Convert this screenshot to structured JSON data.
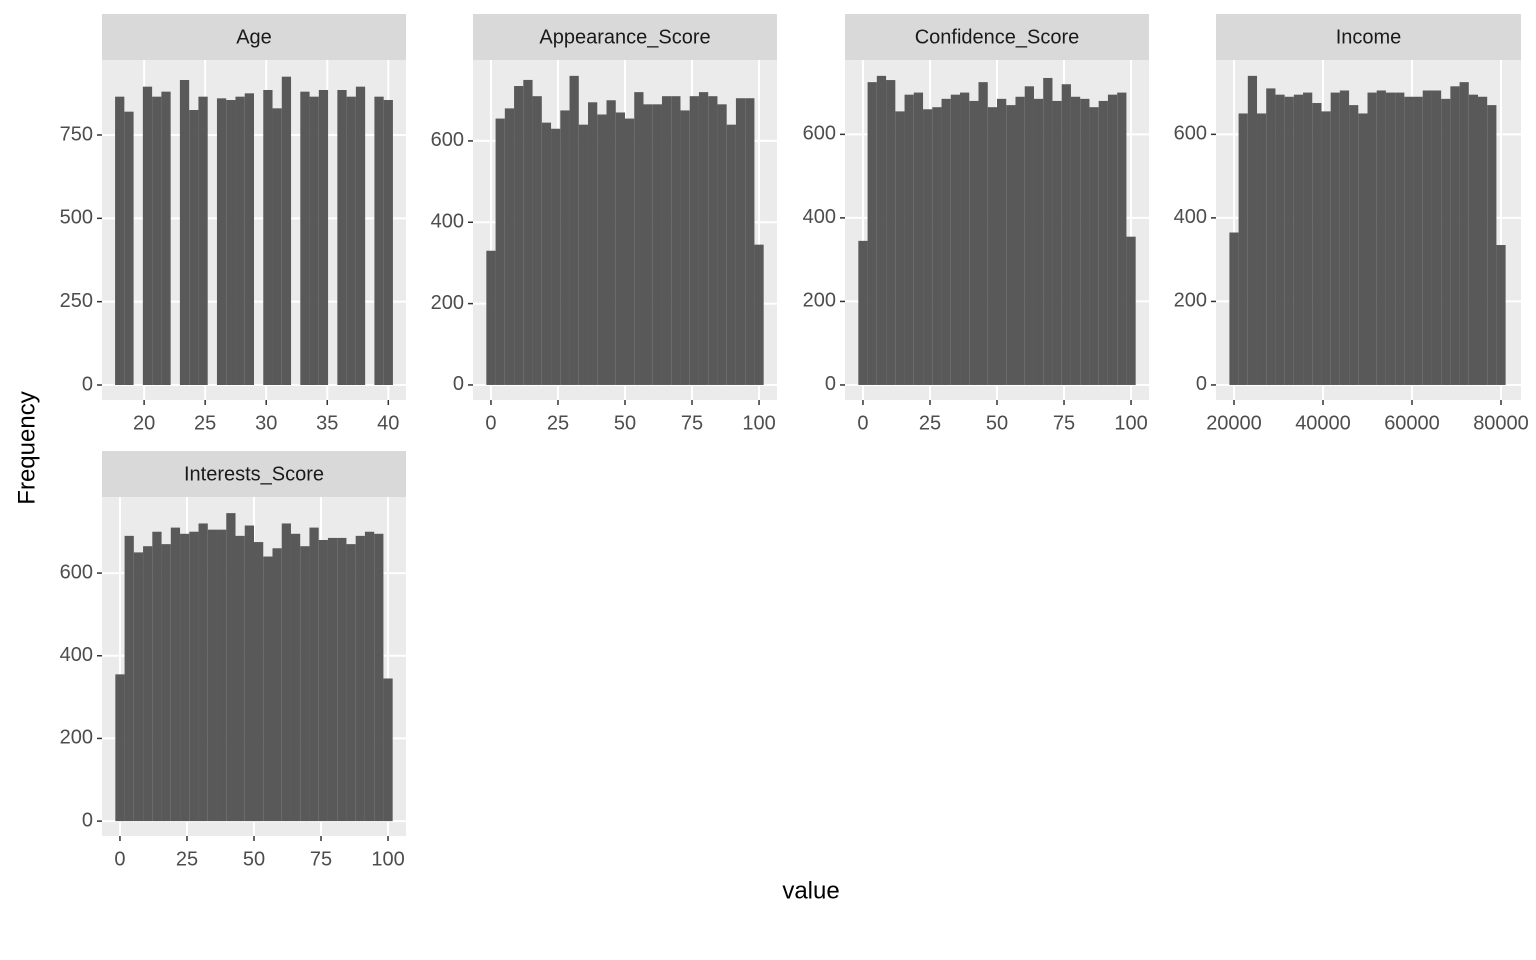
{
  "x_label": "value",
  "y_label": "Frequency",
  "chart_data": [
    {
      "type": "histogram",
      "title": "Age",
      "color": "#595959",
      "grid": true,
      "bins": [
        17.621,
        18.379,
        19.138,
        19.897,
        20.655,
        21.414,
        22.172,
        22.931,
        23.69,
        24.448,
        25.207,
        25.966,
        26.724,
        27.483,
        28.241,
        29.0,
        29.759,
        30.517,
        31.276,
        32.034,
        32.793,
        33.552,
        34.31,
        35.069,
        35.828,
        36.586,
        37.345,
        38.103,
        38.862,
        39.621,
        40.379
      ],
      "values": [
        865,
        820,
        0,
        895,
        865,
        880,
        0,
        915,
        825,
        865,
        0,
        860,
        855,
        865,
        875,
        0,
        885,
        830,
        925,
        0,
        880,
        865,
        885,
        0,
        885,
        865,
        895,
        0,
        865,
        855
      ],
      "xlim": [
        16.55,
        41.45
      ],
      "ylim": [
        -45,
        975
      ],
      "xticks": [
        20,
        25,
        30,
        35,
        40
      ],
      "yticks": [
        0,
        250,
        500,
        750
      ]
    },
    {
      "type": "histogram",
      "title": "Appearance_Score",
      "color": "#595959",
      "grid": true,
      "bins": [
        -1.724,
        1.724,
        5.172,
        8.621,
        12.069,
        15.517,
        18.966,
        22.414,
        25.862,
        29.31,
        32.759,
        36.207,
        39.655,
        43.103,
        46.552,
        50.0,
        53.448,
        56.897,
        60.345,
        63.793,
        67.241,
        70.69,
        74.138,
        77.586,
        81.034,
        84.483,
        87.931,
        91.379,
        94.828,
        98.276,
        101.724
      ],
      "values": [
        330,
        655,
        680,
        735,
        750,
        710,
        645,
        630,
        675,
        760,
        640,
        695,
        665,
        700,
        670,
        655,
        720,
        690,
        690,
        710,
        710,
        675,
        710,
        720,
        710,
        690,
        640,
        705,
        705,
        345
      ],
      "xlim": [
        -6.7,
        106.7
      ],
      "ylim": [
        -37,
        799
      ],
      "xticks": [
        0,
        25,
        50,
        75,
        100
      ],
      "yticks": [
        0,
        200,
        400,
        600
      ]
    },
    {
      "type": "histogram",
      "title": "Confidence_Score",
      "color": "#595959",
      "grid": true,
      "bins": [
        -1.724,
        1.724,
        5.172,
        8.621,
        12.069,
        15.517,
        18.966,
        22.414,
        25.862,
        29.31,
        32.759,
        36.207,
        39.655,
        43.103,
        46.552,
        50.0,
        53.448,
        56.897,
        60.345,
        63.793,
        67.241,
        70.69,
        74.138,
        77.586,
        81.034,
        84.483,
        87.931,
        91.379,
        94.828,
        98.276,
        101.724
      ],
      "values": [
        345,
        725,
        740,
        730,
        655,
        695,
        700,
        660,
        665,
        685,
        695,
        700,
        680,
        725,
        665,
        685,
        670,
        690,
        715,
        685,
        735,
        680,
        720,
        690,
        685,
        665,
        680,
        695,
        700,
        355
      ],
      "xlim": [
        -6.7,
        106.7
      ],
      "ylim": [
        -36,
        778
      ],
      "xticks": [
        0,
        25,
        50,
        75,
        100
      ],
      "yticks": [
        0,
        200,
        400,
        600
      ]
    },
    {
      "type": "histogram",
      "title": "Income",
      "color": "#595959",
      "grid": true,
      "bins": [
        18966,
        21034,
        23103,
        25172,
        27241,
        29310,
        31379,
        33448,
        35517,
        37586,
        39655,
        41724,
        43793,
        45862,
        47931,
        50000,
        52069,
        54138,
        56207,
        58276,
        60345,
        62414,
        64483,
        66552,
        68621,
        70690,
        72759,
        74828,
        76897,
        78966,
        81034
      ],
      "values": [
        365,
        650,
        740,
        650,
        710,
        695,
        690,
        695,
        700,
        675,
        655,
        700,
        705,
        670,
        650,
        700,
        705,
        700,
        700,
        690,
        690,
        705,
        705,
        685,
        715,
        725,
        695,
        690,
        670,
        335
      ],
      "xlim": [
        15955,
        84494
      ],
      "ylim": [
        -36,
        778
      ],
      "xticks": [
        20000,
        40000,
        60000,
        80000
      ],
      "yticks": [
        0,
        200,
        400,
        600
      ]
    },
    {
      "type": "histogram",
      "title": "Interests_Score",
      "color": "#595959",
      "grid": true,
      "bins": [
        -1.724,
        1.724,
        5.172,
        8.621,
        12.069,
        15.517,
        18.966,
        22.414,
        25.862,
        29.31,
        32.759,
        36.207,
        39.655,
        43.103,
        46.552,
        50.0,
        53.448,
        56.897,
        60.345,
        63.793,
        67.241,
        70.69,
        74.138,
        77.586,
        81.034,
        84.483,
        87.931,
        91.379,
        94.828,
        98.276,
        101.724
      ],
      "values": [
        355,
        690,
        650,
        665,
        700,
        670,
        710,
        695,
        700,
        720,
        705,
        705,
        745,
        690,
        715,
        675,
        640,
        660,
        720,
        695,
        665,
        710,
        680,
        685,
        685,
        670,
        690,
        700,
        695,
        345
      ],
      "xlim": [
        -6.7,
        106.7
      ],
      "ylim": [
        -36,
        784
      ],
      "xticks": [
        0,
        25,
        50,
        75,
        100
      ],
      "yticks": [
        0,
        200,
        400,
        600
      ]
    }
  ]
}
